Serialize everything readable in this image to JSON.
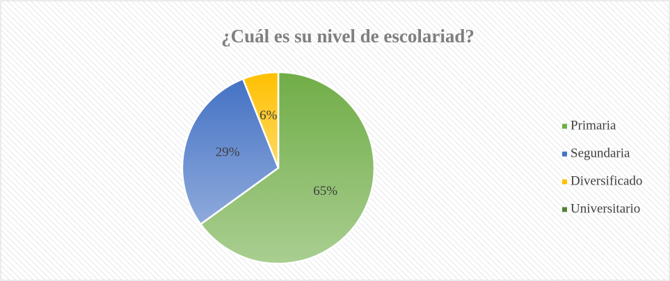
{
  "chart_data": {
    "type": "pie",
    "title": "¿Cuál es su nivel de escolariad?",
    "categories": [
      "Primaria",
      "Segundaria",
      "Diversificado",
      "Universitario"
    ],
    "values": [
      65,
      29,
      6,
      0
    ],
    "value_labels": [
      "65%",
      "29%",
      "6%",
      null
    ],
    "colors": [
      "#70ad47",
      "#4472c4",
      "#ffc000",
      "#548235"
    ],
    "legend": "right"
  }
}
